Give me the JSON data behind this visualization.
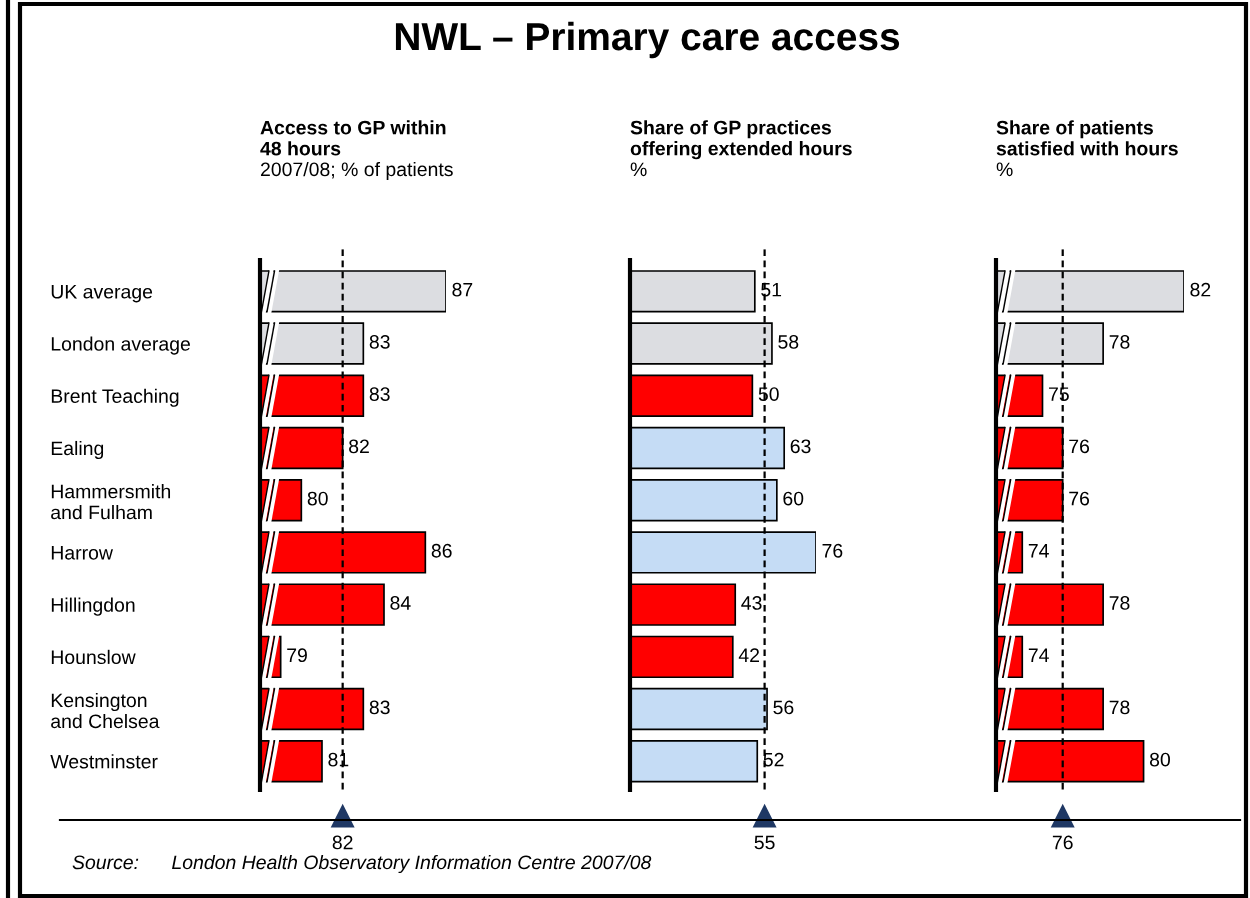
{
  "chart_data": [
    {
      "type": "bar",
      "orientation": "horizontal",
      "title": "NWL – Primary care access",
      "subtitle": "Access to GP within\n48 hours",
      "xlabel": "2007/08; % of patients",
      "categories": [
        "UK average",
        "London average",
        "Brent Teaching",
        "Ealing",
        "Hammersmith\nand Fulham",
        "Harrow",
        "Hillingdon",
        "Hounslow",
        "Kensington\nand Chelsea",
        "Westminster"
      ],
      "values": [
        87,
        83,
        83,
        82,
        80,
        86,
        84,
        79,
        83,
        81
      ],
      "colors": [
        "#dcdde1",
        "#dcdde1",
        "#ff0000",
        "#ff0000",
        "#ff0000",
        "#ff0000",
        "#ff0000",
        "#ff0000",
        "#ff0000",
        "#ff0000"
      ],
      "xlim": [
        78,
        87
      ],
      "data_labels": true,
      "tick_labels": "y",
      "grid": false,
      "ref_lines": [
        {
          "axis": "x",
          "value": 82,
          "label": "82",
          "line_style": "dashed",
          "color": "#000000"
        }
      ],
      "annotations": [
        "Source:      London Health Observatory Information Centre 2007/08"
      ]
    },
    {
      "type": "bar",
      "orientation": "horizontal",
      "subtitle": "Share of GP practices\noffering extended hours",
      "xlabel": "%",
      "categories": [
        null,
        null,
        null,
        null,
        null,
        null,
        null,
        null,
        null,
        null
      ],
      "values": [
        51,
        58,
        50,
        63,
        60,
        76,
        43,
        42,
        56,
        52
      ],
      "colors": [
        "#dcdde1",
        "#dcdde1",
        "#ff0000",
        "#c5dcf5",
        "#c5dcf5",
        "#c5dcf5",
        "#ff0000",
        "#ff0000",
        "#c5dcf5",
        "#c5dcf5"
      ],
      "xlim": [
        0,
        76
      ],
      "data_labels": true,
      "tick_labels": false,
      "grid": false,
      "ref_lines": [
        {
          "axis": "x",
          "value": 55,
          "label": "55",
          "line_style": "dashed",
          "color": "#000000"
        }
      ]
    },
    {
      "type": "bar",
      "orientation": "horizontal",
      "subtitle": "Share of patients\nsatisfied with hours",
      "xlabel": "%",
      "categories": [
        null,
        null,
        null,
        null,
        null,
        null,
        null,
        null,
        null,
        null
      ],
      "values": [
        82,
        78,
        75,
        76,
        76,
        74,
        78,
        74,
        78,
        80
      ],
      "colors": [
        "#dcdde1",
        "#dcdde1",
        "#ff0000",
        "#ff0000",
        "#ff0000",
        "#ff0000",
        "#ff0000",
        "#ff0000",
        "#ff0000",
        "#ff0000"
      ],
      "xlim": [
        72.7,
        82
      ],
      "data_labels": true,
      "tick_labels": false,
      "grid": false,
      "ref_lines": [
        {
          "axis": "x",
          "value": 76,
          "label": "76",
          "line_style": "dashed",
          "color": "#000000"
        }
      ]
    }
  ]
}
